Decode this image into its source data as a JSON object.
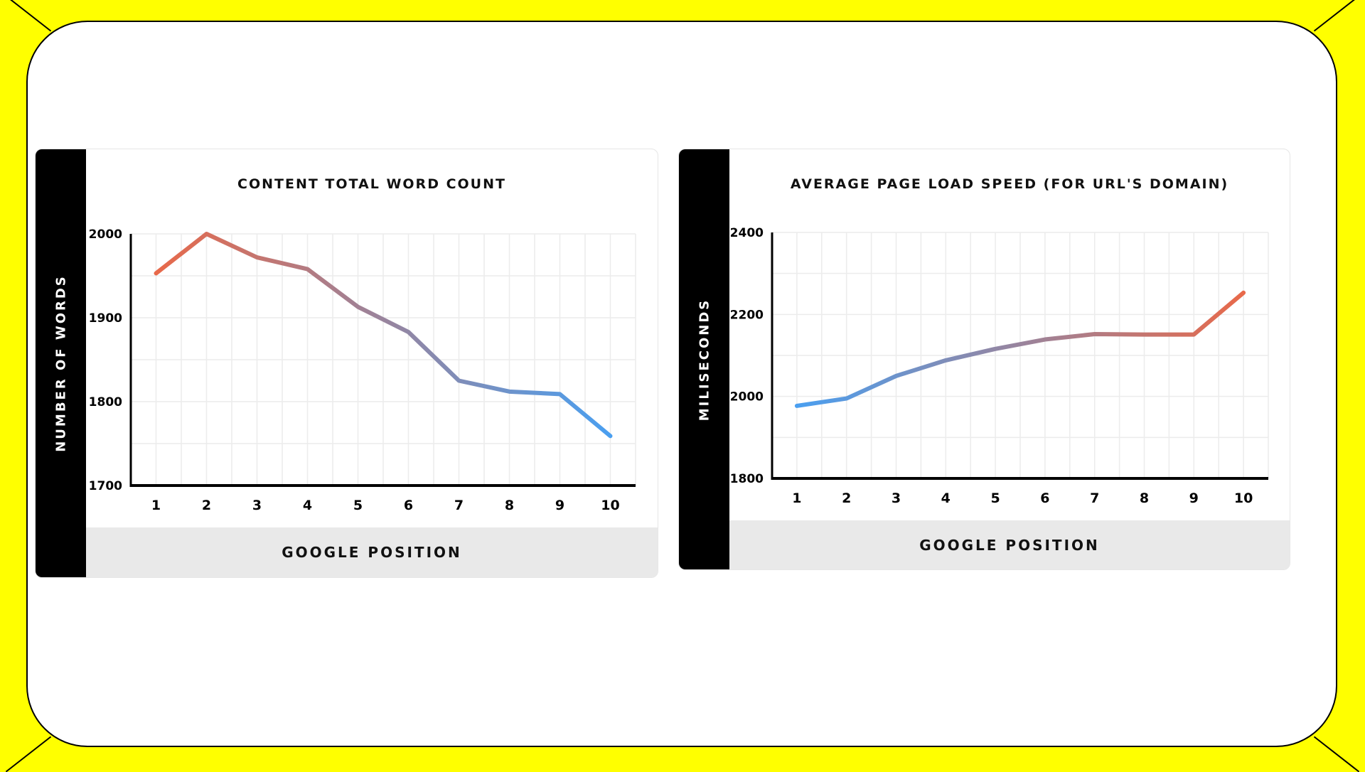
{
  "chart_data": [
    {
      "type": "line",
      "title": "CONTENT TOTAL WORD COUNT",
      "xlabel": "GOOGLE POSITION",
      "ylabel": "NUMBER OF WORDS",
      "categories": [
        1,
        2,
        3,
        4,
        5,
        6,
        7,
        8,
        9,
        10
      ],
      "values": [
        1953,
        2000,
        1972,
        1958,
        1913,
        1883,
        1825,
        1812,
        1809,
        1759
      ],
      "ylim": [
        1700,
        2000
      ],
      "yticks": [
        1700,
        1800,
        1900,
        2000
      ],
      "grid": true,
      "colors": {
        "start": "#e8694a",
        "end": "#4a9ff0"
      }
    },
    {
      "type": "line",
      "title": "AVERAGE PAGE LOAD SPEED (FOR URL'S DOMAIN)",
      "xlabel": "GOOGLE POSITION",
      "ylabel": "MILISECONDS",
      "categories": [
        1,
        2,
        3,
        4,
        5,
        6,
        7,
        8,
        9,
        10
      ],
      "values": [
        1977,
        1995,
        2050,
        2088,
        2116,
        2139,
        2152,
        2151,
        2151,
        2253
      ],
      "ylim": [
        1800,
        2400
      ],
      "yticks": [
        1800,
        2000,
        2200,
        2400
      ],
      "grid": true,
      "colors": {
        "start": "#4a9ff0",
        "end": "#e8694a"
      }
    }
  ]
}
